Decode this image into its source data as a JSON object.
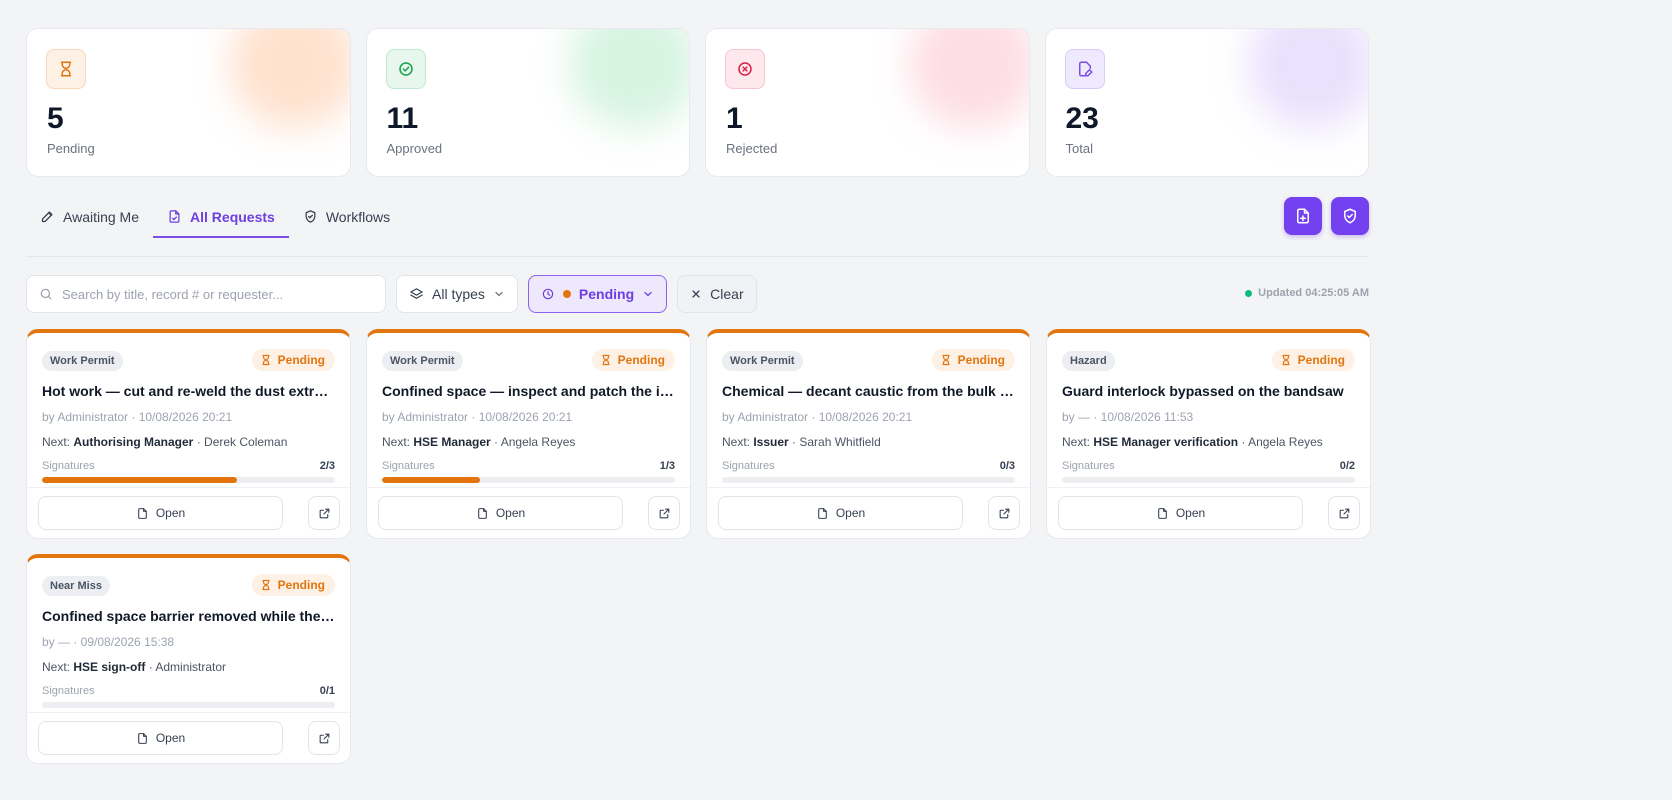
{
  "stats": [
    {
      "value": "5",
      "label": "Pending",
      "icon": "hourglass-icon",
      "color": "#e3750f",
      "bg": "#fdf0e4",
      "glow": "#ffc9a6"
    },
    {
      "value": "11",
      "label": "Approved",
      "icon": "check-circle-icon",
      "color": "#16a34a",
      "bg": "#e7f7ee",
      "glow": "#b6ebc9"
    },
    {
      "value": "1",
      "label": "Rejected",
      "icon": "x-circle-icon",
      "color": "#e11d48",
      "bg": "#fde8ee",
      "glow": "#fcc2cf"
    },
    {
      "value": "23",
      "label": "Total",
      "icon": "edit-doc-icon",
      "color": "#7c4dea",
      "bg": "#efe9fd",
      "glow": "#d7c8fb"
    }
  ],
  "tabs": [
    {
      "label": "Awaiting Me",
      "icon": "pencil-icon",
      "active": false
    },
    {
      "label": "All Requests",
      "icon": "document-icon",
      "active": true
    },
    {
      "label": "Workflows",
      "icon": "shield-check-icon",
      "active": false
    }
  ],
  "header_actions": {
    "new_request_icon": "new-document-icon",
    "workflow_icon": "shield-check-icon"
  },
  "filters": {
    "search_placeholder": "Search by title, record # or requester...",
    "search_value": "",
    "type_label": "All types",
    "status_label": "Pending",
    "clear_label": "Clear",
    "updated_text": "Updated 04:25:05 AM"
  },
  "colors": {
    "accent": "#7341f0",
    "pending": "#e3750f",
    "live": "#10b981"
  },
  "cards": [
    {
      "type": "Work Permit",
      "status": "Pending",
      "title": "Hot work — cut and re-weld the dust extraction duct",
      "by": "by Administrator · 10/08/2026 20:21",
      "next_role": "Authorising Manager",
      "next_person": "· Derek Coleman",
      "sig_label": "Signatures",
      "sig_count": "2/3",
      "progress": 0.667,
      "open_label": "Open"
    },
    {
      "type": "Work Permit",
      "status": "Pending",
      "title": "Confined space — inspect and patch the inside of the tank",
      "by": "by Administrator · 10/08/2026 20:21",
      "next_role": "HSE Manager",
      "next_person": "· Angela Reyes",
      "sig_label": "Signatures",
      "sig_count": "1/3",
      "progress": 0.333,
      "open_label": "Open"
    },
    {
      "type": "Work Permit",
      "status": "Pending",
      "title": "Chemical — decant caustic from the bulk tank",
      "by": "by Administrator · 10/08/2026 20:21",
      "next_role": "Issuer",
      "next_person": "· Sarah Whitfield",
      "sig_label": "Signatures",
      "sig_count": "0/3",
      "progress": 0,
      "open_label": "Open"
    },
    {
      "type": "Hazard",
      "status": "Pending",
      "title": "Guard interlock bypassed on the bandsaw",
      "by": "by — · 10/08/2026 11:53",
      "next_role": "HSE Manager verification",
      "next_person": "· Angela Reyes",
      "sig_label": "Signatures",
      "sig_count": "0/2",
      "progress": 0,
      "open_label": "Open"
    },
    {
      "type": "Near Miss",
      "status": "Pending",
      "title": "Confined space barrier removed while the entrant was inside",
      "by": "by — · 09/08/2026 15:38",
      "next_role": "HSE sign-off",
      "next_person": "· Administrator",
      "sig_label": "Signatures",
      "sig_count": "0/1",
      "progress": 0,
      "open_label": "Open"
    }
  ]
}
